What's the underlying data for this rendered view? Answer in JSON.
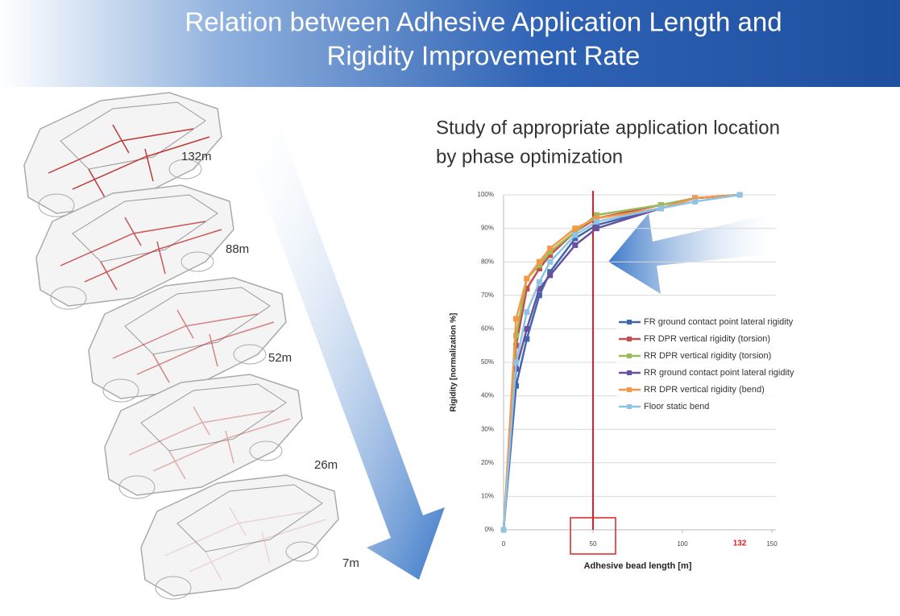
{
  "slide": {
    "title": [
      "Relation between Adhesive Application Length and",
      "Rigidity Improvement Rate"
    ],
    "subtitle": [
      "Study of appropriate application location",
      "by phase optimization"
    ],
    "car_labels": [
      "132m",
      "88m",
      "52m",
      "26m",
      "7m"
    ]
  },
  "chart_data": {
    "type": "line",
    "x_label": "Adhesive bead length [m]",
    "y_label": "Rigidity [normalization %]",
    "x": [
      0,
      7,
      13,
      20,
      26,
      40,
      52,
      88,
      107,
      132
    ],
    "series": [
      {
        "name": "FR ground contact point lateral rigidity",
        "color": "#3f67b0",
        "values": [
          0,
          43,
          57,
          70,
          77,
          87,
          91,
          96,
          99,
          100
        ]
      },
      {
        "name": "FR DPR vertical rigidity (torsion)",
        "color": "#c0504d",
        "values": [
          0,
          55,
          72,
          78,
          82,
          89,
          93,
          97,
          99,
          100
        ]
      },
      {
        "name": "RR DPR vertical rigidity (torsion)",
        "color": "#9bbb59",
        "values": [
          0,
          58,
          75,
          79,
          83,
          89,
          94,
          97,
          99,
          100
        ]
      },
      {
        "name": "RR ground contact point lateral rigidity",
        "color": "#6a51a0",
        "values": [
          0,
          48,
          60,
          72,
          76,
          85,
          90,
          96,
          99,
          100
        ]
      },
      {
        "name": "RR DPR vertical rigidity (bend)",
        "color": "#f79646",
        "values": [
          0,
          63,
          75,
          80,
          84,
          90,
          93,
          96,
          99,
          100
        ]
      },
      {
        "name": "Floor static bend",
        "color": "#8fc3e3",
        "values": [
          0,
          50,
          65,
          74,
          80,
          88,
          92,
          96,
          98,
          100
        ]
      }
    ],
    "xlim": [
      0,
      150
    ],
    "xticks": [
      0,
      50,
      100,
      150
    ],
    "ylim": [
      0,
      100
    ],
    "yticks": [
      {
        "value": 0,
        "label": "0%"
      },
      {
        "value": 10,
        "label": "10%"
      },
      {
        "value": 20,
        "label": "20%"
      },
      {
        "value": 30,
        "label": "30%"
      },
      {
        "value": 40,
        "label": "40%"
      },
      {
        "value": 50,
        "label": "50%"
      },
      {
        "value": 60,
        "label": "60%"
      },
      {
        "value": 70,
        "label": "70%"
      },
      {
        "value": 80,
        "label": "80%"
      },
      {
        "value": 90,
        "label": "90%"
      },
      {
        "value": 100,
        "label": "100%"
      }
    ],
    "grid": true,
    "highlight_x": 50,
    "highlight_color": "#e02020",
    "annotations": [
      {
        "x": 132,
        "text": "132",
        "color": "#e02020"
      }
    ]
  }
}
